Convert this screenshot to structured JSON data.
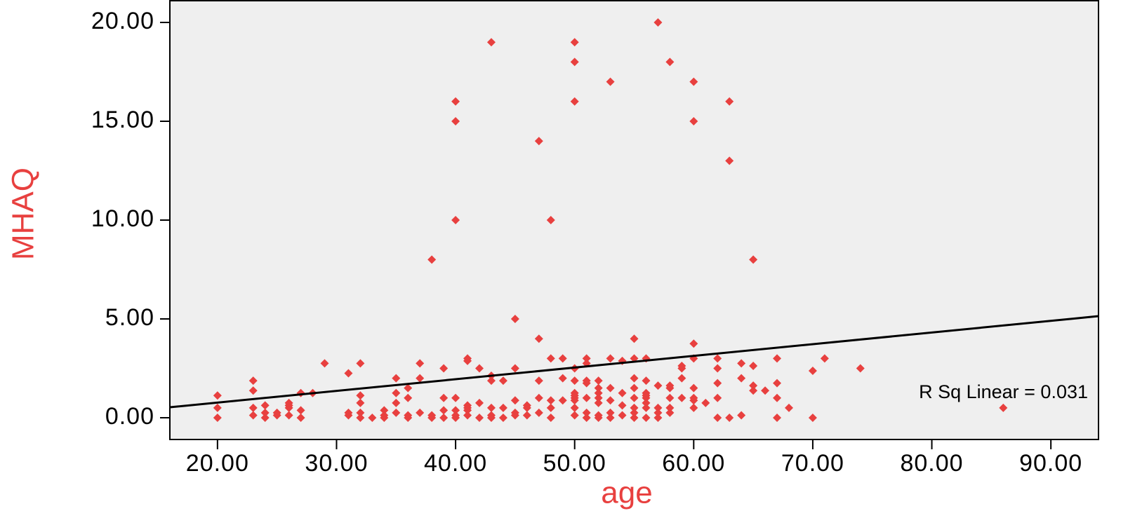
{
  "chart_data": {
    "type": "scatter",
    "x_label": "age",
    "y_label": "MHAQ",
    "color": "#e8403f",
    "annotation": "R Sq Linear = 0.031",
    "fit_line": {
      "x": [
        16,
        94
      ],
      "values": [
        0.53,
        5.14
      ],
      "color": "#000000"
    },
    "xlim": [
      16,
      94
    ],
    "ylim": [
      -1.1,
      21.1
    ],
    "xticks": [
      {
        "value": 20,
        "label": "20.00"
      },
      {
        "value": 30,
        "label": "30.00"
      },
      {
        "value": 40,
        "label": "40.00"
      },
      {
        "value": 50,
        "label": "50.00"
      },
      {
        "value": 60,
        "label": "60.00"
      },
      {
        "value": 70,
        "label": "70.00"
      },
      {
        "value": 80,
        "label": "80.00"
      },
      {
        "value": 90,
        "label": "90.00"
      }
    ],
    "yticks": [
      {
        "value": 0,
        "label": "0.00"
      },
      {
        "value": 5,
        "label": "5.00"
      },
      {
        "value": 10,
        "label": "10.00"
      },
      {
        "value": 15,
        "label": "15.00"
      },
      {
        "value": 20,
        "label": "20.00"
      }
    ],
    "x": [
      43,
      50,
      57,
      50,
      58,
      53,
      60,
      40,
      50,
      63,
      40,
      60,
      47,
      63,
      40,
      48,
      38,
      65,
      45,
      47,
      55,
      60,
      20,
      20,
      20,
      23,
      23,
      23,
      23,
      24,
      24,
      24,
      25,
      25,
      26,
      26,
      26,
      26,
      27,
      27,
      27,
      28,
      29,
      31,
      31,
      31,
      32,
      32,
      32,
      32,
      32,
      33,
      34,
      34,
      34,
      35,
      35,
      35,
      35,
      36,
      36,
      36,
      36,
      37,
      37,
      37,
      38,
      38,
      39,
      39,
      39,
      39,
      40,
      40,
      40,
      40,
      41,
      41,
      41,
      41,
      41,
      41,
      42,
      42,
      42,
      43,
      43,
      43,
      43,
      43,
      44,
      44,
      44,
      45,
      45,
      45,
      45,
      46,
      46,
      46,
      47,
      47,
      47,
      48,
      48,
      48,
      48,
      49,
      49,
      49,
      50,
      50,
      50,
      50,
      50,
      50,
      50,
      50,
      51,
      51,
      51,
      51,
      51,
      51,
      51,
      52,
      52,
      52,
      52,
      52,
      52,
      52,
      53,
      53,
      53,
      53,
      53,
      54,
      54,
      54,
      54,
      55,
      55,
      55,
      55,
      55,
      55,
      55,
      56,
      56,
      56,
      56,
      56,
      56,
      56,
      56,
      57,
      57,
      57,
      57,
      58,
      58,
      58,
      58,
      58,
      59,
      59,
      59,
      59,
      60,
      60,
      60,
      60,
      60,
      61,
      62,
      62,
      62,
      62,
      62,
      63,
      64,
      64,
      64,
      65,
      65,
      65,
      66,
      67,
      67,
      67,
      67,
      68,
      70,
      70,
      71,
      74,
      86
    ],
    "values": [
      19,
      19,
      20,
      18,
      18,
      17,
      17,
      16,
      16,
      16,
      15,
      15,
      14,
      13,
      10,
      10,
      8,
      8,
      5,
      4,
      4,
      3.75,
      0,
      0.5,
      1.125,
      0.125,
      0.5,
      1.375,
      1.875,
      0,
      0.25,
      0.625,
      0.125,
      0.25,
      0.125,
      0.5,
      0.625,
      0.75,
      0,
      0.375,
      1.25,
      1.25,
      2.75,
      0.125,
      0.25,
      2.25,
      0,
      0.25,
      0.75,
      1.125,
      2.75,
      0,
      0,
      0.125,
      0.375,
      0.25,
      0.75,
      1.25,
      2,
      0,
      0.125,
      1,
      1.5,
      0.25,
      2,
      2.75,
      0,
      0.125,
      0,
      0.375,
      1,
      2.5,
      0,
      0.125,
      0.375,
      1,
      0.125,
      0.375,
      0.5,
      0.625,
      2.875,
      3,
      0,
      0.75,
      2.5,
      0,
      0.125,
      0.5,
      1.875,
      2.125,
      0,
      0.5,
      1.875,
      0.125,
      0.25,
      0.875,
      2.5,
      0.125,
      0.5,
      0.625,
      0.25,
      1,
      1.875,
      0,
      0.5,
      0.875,
      3,
      0.875,
      2,
      3,
      0.125,
      0.5,
      0.875,
      1,
      1.125,
      1.25,
      1.875,
      2.5,
      0,
      0.25,
      1,
      1.75,
      1.875,
      2.75,
      3,
      0,
      0.125,
      0.75,
      1,
      1.25,
      1.5,
      1.875,
      0,
      0.25,
      0.875,
      1.5,
      3,
      0.125,
      0.625,
      1.25,
      2.875,
      0,
      0.25,
      0.5,
      1,
      1.5,
      2,
      3,
      0,
      0.5,
      0.75,
      1,
      1.125,
      1.25,
      1.875,
      3,
      0,
      0.25,
      0.5,
      1.625,
      0.25,
      0.5,
      1,
      1.5,
      1.625,
      1,
      2,
      2.5,
      2.625,
      0.5,
      0.875,
      1,
      1.5,
      3,
      0.75,
      0,
      1,
      1.75,
      2.5,
      3,
      0,
      0.125,
      2,
      2.75,
      1.375,
      1.625,
      2.625,
      1.375,
      0,
      1,
      1.75,
      3,
      0.5,
      0,
      2.375,
      3,
      2.5,
      0.5
    ]
  }
}
